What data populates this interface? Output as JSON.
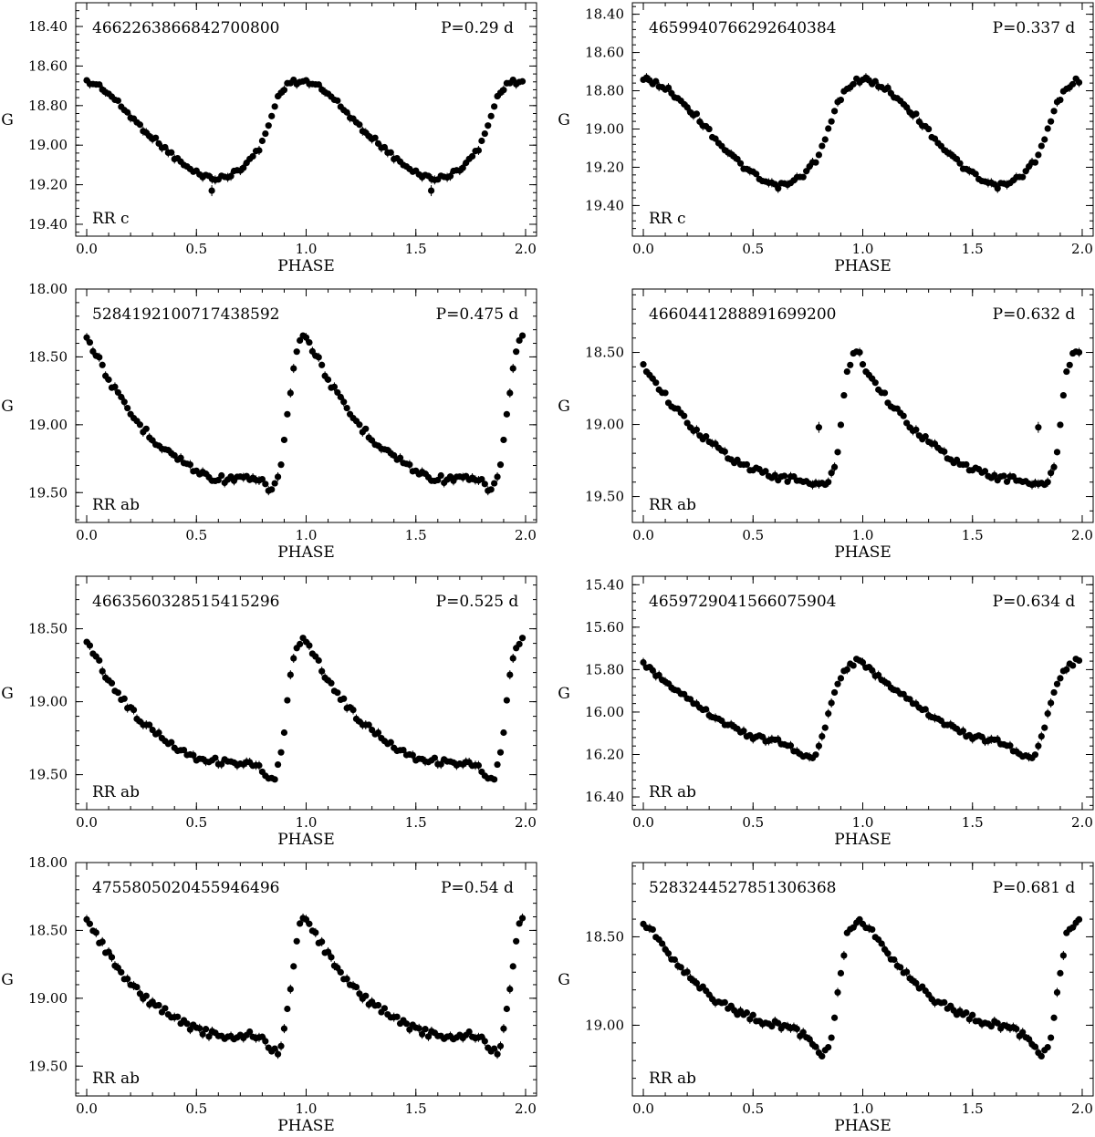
{
  "chart_data": [
    {
      "type": "scatter",
      "id": "4662263866842700800",
      "period": "P=0.29 d",
      "class": "RR c",
      "xlabel": "PHASE",
      "ylabel": "G",
      "xlim": [
        -0.05,
        2.05
      ],
      "ylim": [
        19.46,
        18.28
      ],
      "y_inverted": true,
      "xticks": [
        0.0,
        0.5,
        1.0,
        1.5,
        2.0
      ],
      "xtick_labels": [
        "0.0",
        "0.5",
        "1.0",
        "1.5",
        "2.0"
      ],
      "yticks": [
        18.4,
        18.6,
        18.8,
        19.0,
        19.2,
        19.4
      ],
      "ytick_labels": [
        "18.40",
        "18.60",
        "18.80",
        "19.00",
        "19.20",
        "19.40"
      ],
      "lightcurve": {
        "phase": [
          0.0,
          0.06,
          0.12,
          0.18,
          0.24,
          0.3,
          0.36,
          0.42,
          0.48,
          0.55,
          0.6,
          0.66,
          0.72,
          0.78,
          0.81,
          0.84,
          0.88,
          0.93,
          1.0
        ],
        "mag": [
          18.68,
          18.7,
          18.76,
          18.83,
          18.9,
          18.96,
          19.02,
          19.08,
          19.13,
          19.16,
          19.17,
          19.15,
          19.1,
          19.03,
          18.96,
          18.86,
          18.73,
          18.68,
          18.68
        ]
      },
      "extra_points": [
        {
          "x": 0.57,
          "y": 19.23
        }
      ]
    },
    {
      "type": "scatter",
      "id": "4659940766292640384",
      "period": "P=0.337 d",
      "class": "RR c",
      "xlabel": "PHASE",
      "ylabel": "G",
      "xlim": [
        -0.05,
        2.05
      ],
      "ylim": [
        19.56,
        18.34
      ],
      "y_inverted": true,
      "xticks": [
        0.0,
        0.5,
        1.0,
        1.5,
        2.0
      ],
      "xtick_labels": [
        "0.0",
        "0.5",
        "1.0",
        "1.5",
        "2.0"
      ],
      "yticks": [
        18.4,
        18.6,
        18.8,
        19.0,
        19.2,
        19.4
      ],
      "ytick_labels": [
        "18.40",
        "18.60",
        "18.80",
        "19.00",
        "19.20",
        "19.40"
      ],
      "lightcurve": {
        "phase": [
          0.0,
          0.06,
          0.12,
          0.18,
          0.24,
          0.3,
          0.36,
          0.42,
          0.48,
          0.54,
          0.6,
          0.66,
          0.72,
          0.76,
          0.8,
          0.84,
          0.88,
          0.92,
          0.96,
          1.0
        ],
        "mag": [
          18.74,
          18.76,
          18.8,
          18.86,
          18.93,
          19.01,
          19.09,
          19.16,
          19.22,
          19.27,
          19.3,
          19.29,
          19.25,
          19.2,
          19.14,
          19.02,
          18.88,
          18.8,
          18.75,
          18.74
        ]
      },
      "extra_points": []
    },
    {
      "type": "scatter",
      "id": "5284192100717438592",
      "period": "P=0.475 d",
      "class": "RR ab",
      "xlabel": "PHASE",
      "ylabel": "G",
      "xlim": [
        -0.05,
        2.05
      ],
      "ylim": [
        19.72,
        18.0
      ],
      "y_inverted": true,
      "xticks": [
        0.0,
        0.5,
        1.0,
        1.5,
        2.0
      ],
      "xtick_labels": [
        "0.0",
        "0.5",
        "1.0",
        "1.5",
        "2.0"
      ],
      "yticks": [
        18.0,
        18.5,
        19.0,
        19.5
      ],
      "ytick_labels": [
        "18.00",
        "18.50",
        "19.00",
        "19.50"
      ],
      "lightcurve": {
        "phase": [
          0.0,
          0.04,
          0.08,
          0.13,
          0.18,
          0.24,
          0.3,
          0.36,
          0.42,
          0.48,
          0.55,
          0.62,
          0.7,
          0.78,
          0.82,
          0.85,
          0.88,
          0.91,
          0.94,
          0.97,
          1.0
        ],
        "mag": [
          18.35,
          18.47,
          18.6,
          18.75,
          18.88,
          19.0,
          19.1,
          19.18,
          19.25,
          19.32,
          19.38,
          19.4,
          19.4,
          19.41,
          19.45,
          19.48,
          19.35,
          19.0,
          18.6,
          18.38,
          18.33
        ]
      },
      "extra_points": []
    },
    {
      "type": "scatter",
      "id": "4660441288891699200",
      "period": "P=0.632 d",
      "class": "RR ab",
      "xlabel": "PHASE",
      "ylabel": "G",
      "xlim": [
        -0.05,
        2.05
      ],
      "ylim": [
        19.68,
        18.06
      ],
      "y_inverted": true,
      "xticks": [
        0.0,
        0.5,
        1.0,
        1.5,
        2.0
      ],
      "xtick_labels": [
        "0.0",
        "0.5",
        "1.0",
        "1.5",
        "2.0"
      ],
      "yticks": [
        18.5,
        19.0,
        19.5
      ],
      "ytick_labels": [
        "18.50",
        "19.00",
        "19.50"
      ],
      "lightcurve": {
        "phase": [
          0.0,
          0.06,
          0.12,
          0.18,
          0.24,
          0.3,
          0.36,
          0.42,
          0.48,
          0.55,
          0.62,
          0.7,
          0.76,
          0.8,
          0.84,
          0.88,
          0.9,
          0.93,
          0.96,
          1.0
        ],
        "mag": [
          18.58,
          18.72,
          18.84,
          18.95,
          19.04,
          19.12,
          19.19,
          19.25,
          19.3,
          19.34,
          19.37,
          19.38,
          19.4,
          19.42,
          19.42,
          19.25,
          19.0,
          18.62,
          18.49,
          18.48
        ]
      },
      "extra_points": [
        {
          "x": 0.8,
          "y": 19.02
        }
      ]
    },
    {
      "type": "scatter",
      "id": "4663560328515415296",
      "period": "P=0.525 d",
      "class": "RR ab",
      "xlabel": "PHASE",
      "ylabel": "G",
      "xlim": [
        -0.05,
        2.05
      ],
      "ylim": [
        19.74,
        18.14
      ],
      "y_inverted": true,
      "xticks": [
        0.0,
        0.5,
        1.0,
        1.5,
        2.0
      ],
      "xtick_labels": [
        "0.0",
        "0.5",
        "1.0",
        "1.5",
        "2.0"
      ],
      "yticks": [
        18.5,
        19.0,
        19.5
      ],
      "ytick_labels": [
        "18.50",
        "19.00",
        "19.50"
      ],
      "lightcurve": {
        "phase": [
          0.0,
          0.05,
          0.1,
          0.15,
          0.2,
          0.25,
          0.3,
          0.36,
          0.42,
          0.48,
          0.55,
          0.62,
          0.7,
          0.78,
          0.82,
          0.86,
          0.9,
          0.92,
          0.95,
          0.98,
          1.0
        ],
        "mag": [
          18.58,
          18.72,
          18.85,
          18.96,
          19.05,
          19.13,
          19.2,
          19.26,
          19.32,
          19.37,
          19.4,
          19.41,
          19.42,
          19.44,
          19.53,
          19.54,
          19.23,
          18.92,
          18.62,
          18.57,
          18.58
        ]
      },
      "extra_points": []
    },
    {
      "type": "scatter",
      "id": "4659729041566075904",
      "period": "P=0.634 d",
      "class": "RR ab",
      "xlabel": "PHASE",
      "ylabel": "G",
      "xlim": [
        -0.05,
        2.05
      ],
      "ylim": [
        16.46,
        15.36
      ],
      "y_inverted": true,
      "xticks": [
        0.0,
        0.5,
        1.0,
        1.5,
        2.0
      ],
      "xtick_labels": [
        "0.0",
        "0.5",
        "1.0",
        "1.5",
        "2.0"
      ],
      "yticks": [
        15.4,
        15.6,
        15.8,
        16.0,
        16.2,
        16.4
      ],
      "ytick_labels": [
        "15.40",
        "15.60",
        "15.80",
        "16.00",
        "16.20",
        "16.40"
      ],
      "lightcurve": {
        "phase": [
          0.0,
          0.08,
          0.16,
          0.24,
          0.32,
          0.4,
          0.48,
          0.56,
          0.62,
          0.68,
          0.72,
          0.76,
          0.79,
          0.82,
          0.85,
          0.89,
          0.93,
          0.97,
          1.0
        ],
        "mag": [
          15.77,
          15.84,
          15.9,
          15.96,
          16.02,
          16.07,
          16.11,
          16.13,
          16.14,
          16.17,
          16.2,
          16.22,
          16.2,
          16.1,
          15.97,
          15.85,
          15.79,
          15.76,
          15.77
        ]
      },
      "extra_points": []
    },
    {
      "type": "scatter",
      "id": "4755805020455946496",
      "period": "P=0.54 d",
      "class": "RR ab",
      "xlabel": "PHASE",
      "ylabel": "G",
      "xlim": [
        -0.05,
        2.05
      ],
      "ylim": [
        19.72,
        18.0
      ],
      "y_inverted": true,
      "xticks": [
        0.0,
        0.5,
        1.0,
        1.5,
        2.0
      ],
      "xtick_labels": [
        "0.0",
        "0.5",
        "1.0",
        "1.5",
        "2.0"
      ],
      "yticks": [
        18.0,
        18.5,
        19.0,
        19.5
      ],
      "ytick_labels": [
        "18.00",
        "18.50",
        "19.00",
        "19.50"
      ],
      "lightcurve": {
        "phase": [
          0.0,
          0.05,
          0.1,
          0.15,
          0.2,
          0.26,
          0.32,
          0.38,
          0.44,
          0.5,
          0.58,
          0.66,
          0.74,
          0.8,
          0.84,
          0.88,
          0.91,
          0.94,
          0.97,
          1.0
        ],
        "mag": [
          18.4,
          18.55,
          18.68,
          18.8,
          18.9,
          18.99,
          19.06,
          19.12,
          19.18,
          19.23,
          19.27,
          19.29,
          19.27,
          19.28,
          19.38,
          19.4,
          19.15,
          18.78,
          18.45,
          18.38
        ]
      },
      "extra_points": []
    },
    {
      "type": "scatter",
      "id": "5283244527851306368",
      "period": "P=0.681 d",
      "class": "RR ab",
      "xlabel": "PHASE",
      "ylabel": "G",
      "xlim": [
        -0.05,
        2.05
      ],
      "ylim": [
        19.4,
        18.08
      ],
      "y_inverted": true,
      "xticks": [
        0.0,
        0.5,
        1.0,
        1.5,
        2.0
      ],
      "xtick_labels": [
        "0.0",
        "0.5",
        "1.0",
        "1.5",
        "2.0"
      ],
      "yticks": [
        18.5,
        19.0
      ],
      "ytick_labels": [
        "18.50",
        "19.00"
      ],
      "lightcurve": {
        "phase": [
          0.0,
          0.06,
          0.12,
          0.18,
          0.24,
          0.3,
          0.36,
          0.42,
          0.48,
          0.55,
          0.62,
          0.68,
          0.74,
          0.78,
          0.81,
          0.84,
          0.86,
          0.88,
          0.9,
          0.93,
          0.97,
          1.0
        ],
        "mag": [
          18.41,
          18.5,
          18.6,
          18.68,
          18.76,
          18.83,
          18.88,
          18.92,
          18.95,
          18.98,
          19.0,
          19.02,
          19.06,
          19.1,
          19.17,
          19.14,
          19.04,
          18.88,
          18.7,
          18.48,
          18.41,
          18.41
        ]
      },
      "extra_points": []
    }
  ]
}
